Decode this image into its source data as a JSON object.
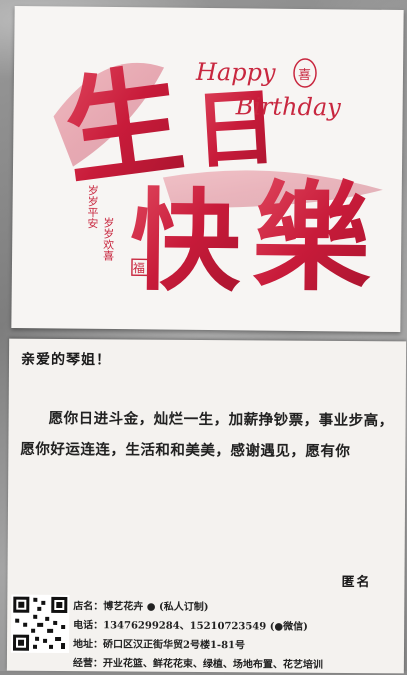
{
  "card_front": {
    "big_chars": [
      "生",
      "日",
      "快",
      "樂"
    ],
    "english_line1": "Happy",
    "english_line2": "Birthday",
    "seal_char": "喜",
    "small_seal_char": "福",
    "blessing_col1": "岁岁平安",
    "blessing_col2": "岁岁欢喜",
    "accent_color": "#d0213f"
  },
  "card_back": {
    "salutation": "亲爱的琴姐！",
    "message": "愿你日进斗金，灿烂一生，加薪挣钞票，事业步高，愿你好运连连，生活和和美美，感谢遇见，愿有你",
    "signature": "匿名",
    "shop": {
      "name_line": "店名：博艺花卉 ● (私人订制)",
      "phone_line": "电话：13476299284、15210723549 (●微信)",
      "address_line": "地址：硚口区汉正街华贸2号楼1-81号",
      "business_line": "经营：开业花篮、鲜花花束、绿植、场地布置、花艺培训"
    }
  }
}
